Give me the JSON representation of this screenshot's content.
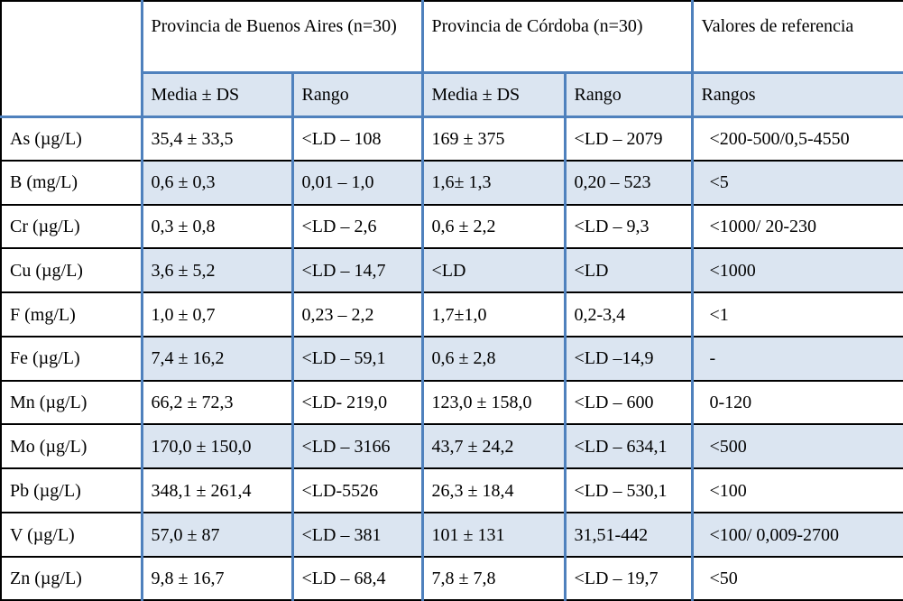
{
  "header": {
    "groups": [
      "Provincia de Buenos Aires (n=30)",
      "Provincia de Córdoba (n=30)",
      "Valores de referencia"
    ],
    "subheaders": [
      "Media ± DS",
      "Rango",
      "Media ± DS",
      "Rango",
      "Rangos"
    ]
  },
  "rows": [
    {
      "param": "As (µg/L)",
      "ba_mean": "35,4 ± 33,5",
      "ba_range": "<LD – 108",
      "co_mean": "169 ± 375",
      "co_range": "<LD – 2079",
      "ref": "<200-500/0,5-4550"
    },
    {
      "param": "B (mg/L)",
      "ba_mean": "0,6 ± 0,3",
      "ba_range": "0,01 – 1,0",
      "co_mean": "1,6± 1,3",
      "co_range": "0,20 – 523",
      "ref": "<5"
    },
    {
      "param": "Cr (µg/L)",
      "ba_mean": "0,3 ± 0,8",
      "ba_range": "<LD – 2,6",
      "co_mean": "0,6 ± 2,2",
      "co_range": "<LD – 9,3",
      "ref": "<1000/ 20-230"
    },
    {
      "param": "Cu (µg/L)",
      "ba_mean": "3,6 ± 5,2",
      "ba_range": "<LD – 14,7",
      "co_mean": "<LD",
      "co_range": "<LD",
      "ref": "<1000"
    },
    {
      "param": "F (mg/L)",
      "ba_mean": "1,0 ± 0,7",
      "ba_range": "0,23 – 2,2",
      "co_mean": "1,7±1,0",
      "co_range": "0,2-3,4",
      "ref": "<1"
    },
    {
      "param": "Fe (µg/L)",
      "ba_mean": "7,4 ± 16,2",
      "ba_range": "<LD – 59,1",
      "co_mean": "0,6 ± 2,8",
      "co_range": "<LD –14,9",
      "ref": "-"
    },
    {
      "param": "Mn (µg/L)",
      "ba_mean": "66,2 ± 72,3",
      "ba_range": "<LD- 219,0",
      "co_mean": "123,0 ± 158,0",
      "co_range": "<LD – 600",
      "ref": "0-120"
    },
    {
      "param": "Mo (µg/L)",
      "ba_mean": "170,0 ± 150,0",
      "ba_range": "<LD – 3166",
      "co_mean": "43,7 ± 24,2",
      "co_range": "<LD – 634,1",
      "ref": "<500"
    },
    {
      "param": "Pb (µg/L)",
      "ba_mean": "348,1 ± 261,4",
      "ba_range": "<LD-5526",
      "co_mean": "26,3 ± 18,4",
      "co_range": "<LD – 530,1",
      "ref": "<100"
    },
    {
      "param": "V (µg/L)",
      "ba_mean": "57,0 ± 87",
      "ba_range": "<LD – 381",
      "co_mean": "101 ± 131",
      "co_range": "31,51-442",
      "ref": "<100/ 0,009-2700"
    },
    {
      "param": "Zn (µg/L)",
      "ba_mean": "9,8 ± 16,7",
      "ba_range": "<LD – 68,4",
      "co_mean": "7,8 ± 7,8",
      "co_range": "<LD – 19,7",
      "ref": "<50"
    }
  ],
  "colors": {
    "cell_fill": "#dbe5f1",
    "grid_line": "#000000",
    "accent_line": "#4f81bd"
  }
}
